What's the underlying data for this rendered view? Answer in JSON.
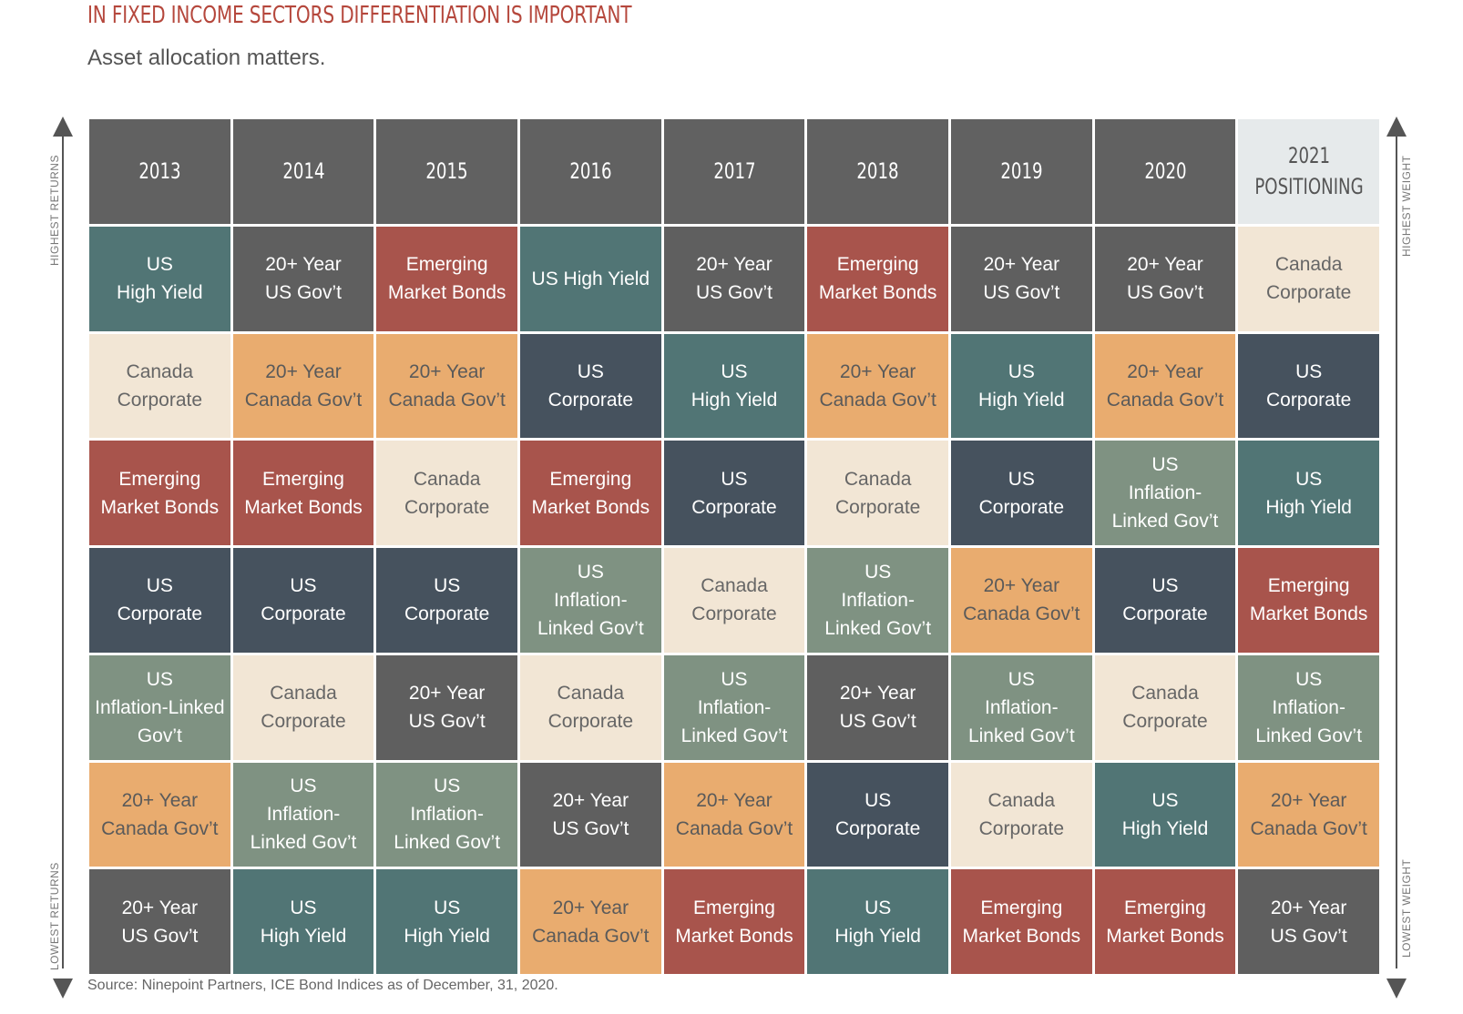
{
  "title": "IN FIXED INCOME SECTORS DIFFERENTIATION IS IMPORTANT",
  "subtitle": "Asset allocation matters.",
  "source": "Source: Ninepoint Partners, ICE Bond Indices as of December, 31, 2020.",
  "axis_labels": {
    "left_top": "HIGHEST RETURNS",
    "left_bottom": "LOWEST RETURNS",
    "right_top": "HIGHEST WEIGHT",
    "right_bottom": "LOWEST WEIGHT"
  },
  "colors": {
    "header": "#616161",
    "positioning_header": "#e6eaeb",
    "US High Yield": "#517575",
    "20+ Year US Gov't": "#5f5f5f",
    "Emerging Market Bonds": "#a8544c",
    "Canada Corporate": "#f2e6d5",
    "20+ Year Canada Gov't": "#e9ac6f",
    "US Corporate": "#46525e",
    "US Inflation-Linked Gov't": "#7f9282"
  },
  "chart_data": {
    "type": "table",
    "columns": [
      "2013",
      "2014",
      "2015",
      "2016",
      "2017",
      "2018",
      "2019",
      "2020",
      "2021\nPOSITIONING"
    ],
    "rows": [
      [
        "US\nHigh Yield",
        "20+ Year\nUS Gov’t",
        "Emerging\nMarket Bonds",
        "US High Yield",
        "20+ Year\nUS Gov’t",
        "Emerging\nMarket Bonds",
        "20+ Year\nUS Gov’t",
        "20+ Year\nUS Gov’t",
        "Canada\nCorporate"
      ],
      [
        "Canada\nCorporate",
        "20+ Year\nCanada Gov’t",
        "20+ Year\nCanada Gov’t",
        "US\nCorporate",
        "US\nHigh Yield",
        "20+ Year\nCanada Gov’t",
        "US\nHigh Yield",
        "20+ Year\nCanada Gov’t",
        "US\nCorporate"
      ],
      [
        "Emerging\nMarket Bonds",
        "Emerging\nMarket Bonds",
        "Canada\nCorporate",
        "Emerging\nMarket Bonds",
        "US\nCorporate",
        "Canada\nCorporate",
        "US\nCorporate",
        "US\nInflation-\nLinked Gov’t",
        "US\nHigh Yield"
      ],
      [
        "US\nCorporate",
        "US\nCorporate",
        "US\nCorporate",
        "US\nInflation-\nLinked Gov’t",
        "Canada\nCorporate",
        "US\nInflation-\nLinked Gov’t",
        "20+ Year\nCanada Gov’t",
        "US\nCorporate",
        "Emerging\nMarket Bonds"
      ],
      [
        "US\nInflation-Linked\nGov’t",
        "Canada\nCorporate",
        "20+ Year\nUS Gov’t",
        "Canada\nCorporate",
        "US\nInflation-\nLinked Gov’t",
        "20+ Year\nUS Gov’t",
        "US\nInflation-\nLinked Gov’t",
        "Canada\nCorporate",
        "US\nInflation-\nLinked Gov’t"
      ],
      [
        "20+ Year\nCanada Gov’t",
        "US\nInflation-\nLinked Gov’t",
        "US\nInflation-\nLinked Gov’t",
        "20+ Year\nUS Gov’t",
        "20+ Year\nCanada Gov’t",
        "US\nCorporate",
        "Canada\nCorporate",
        "US\nHigh Yield",
        "20+ Year\nCanada Gov’t"
      ],
      [
        "20+ Year\nUS Gov’t",
        "US\nHigh Yield",
        "US\nHigh Yield",
        "20+ Year\nCanada Gov’t",
        "Emerging\nMarket Bonds",
        "US\nHigh Yield",
        "Emerging\nMarket Bonds",
        "Emerging\nMarket Bonds",
        "20+ Year\nUS Gov’t"
      ]
    ],
    "row_sectors": [
      [
        "US High Yield",
        "20+ Year US Gov't",
        "Emerging Market Bonds",
        "US High Yield",
        "20+ Year US Gov't",
        "Emerging Market Bonds",
        "20+ Year US Gov't",
        "20+ Year US Gov't",
        "Canada Corporate"
      ],
      [
        "Canada Corporate",
        "20+ Year Canada Gov't",
        "20+ Year Canada Gov't",
        "US Corporate",
        "US High Yield",
        "20+ Year Canada Gov't",
        "US High Yield",
        "20+ Year Canada Gov't",
        "US Corporate"
      ],
      [
        "Emerging Market Bonds",
        "Emerging Market Bonds",
        "Canada Corporate",
        "Emerging Market Bonds",
        "US Corporate",
        "Canada Corporate",
        "US Corporate",
        "US Inflation-Linked Gov't",
        "US High Yield"
      ],
      [
        "US Corporate",
        "US Corporate",
        "US Corporate",
        "US Inflation-Linked Gov't",
        "Canada Corporate",
        "US Inflation-Linked Gov't",
        "20+ Year Canada Gov't",
        "US Corporate",
        "Emerging Market Bonds"
      ],
      [
        "US Inflation-Linked Gov't",
        "Canada Corporate",
        "20+ Year US Gov't",
        "Canada Corporate",
        "US Inflation-Linked Gov't",
        "20+ Year US Gov't",
        "US Inflation-Linked Gov't",
        "Canada Corporate",
        "US Inflation-Linked Gov't"
      ],
      [
        "20+ Year Canada Gov't",
        "US Inflation-Linked Gov't",
        "US Inflation-Linked Gov't",
        "20+ Year US Gov't",
        "20+ Year Canada Gov't",
        "US Corporate",
        "Canada Corporate",
        "US High Yield",
        "20+ Year Canada Gov't"
      ],
      [
        "20+ Year US Gov't",
        "US High Yield",
        "US High Yield",
        "20+ Year Canada Gov't",
        "Emerging Market Bonds",
        "US High Yield",
        "Emerging Market Bonds",
        "Emerging Market Bonds",
        "20+ Year US Gov't"
      ]
    ]
  }
}
